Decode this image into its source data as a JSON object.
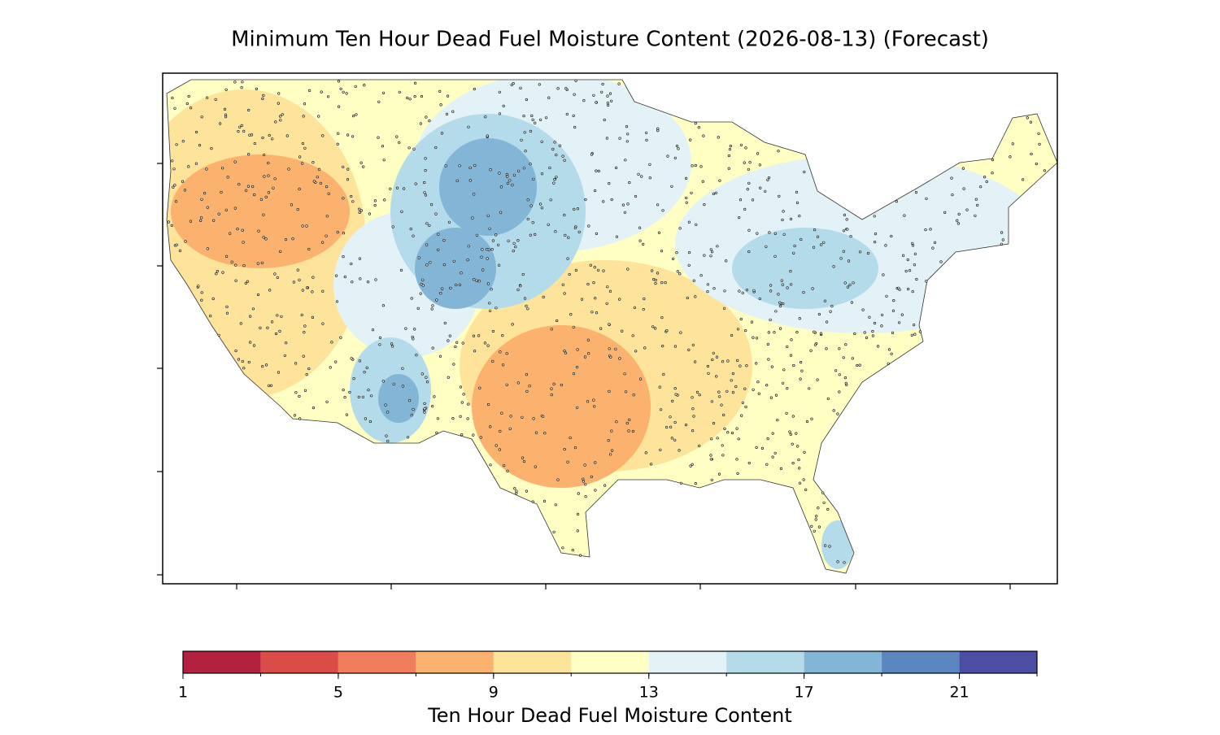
{
  "chart_data": {
    "type": "contour-map",
    "title": "Minimum Ten Hour Dead Fuel Moisture Content (2026-08-13) (Forecast)",
    "colorbar": {
      "label": "Ten Hour Dead Fuel Moisture Content",
      "lim": [
        1,
        23
      ],
      "bins": [
        1,
        3,
        5,
        7,
        9,
        11,
        13,
        15,
        17,
        19,
        21,
        23
      ],
      "colors": [
        "#b2223f",
        "#d94c47",
        "#f07d5b",
        "#fbb26e",
        "#fee39a",
        "#ffffc4",
        "#e2f2f7",
        "#b3dbea",
        "#83b5d6",
        "#5b86c0",
        "#4b4fa3"
      ],
      "ticks": [
        1,
        5,
        9,
        13,
        17,
        21
      ]
    }
  }
}
